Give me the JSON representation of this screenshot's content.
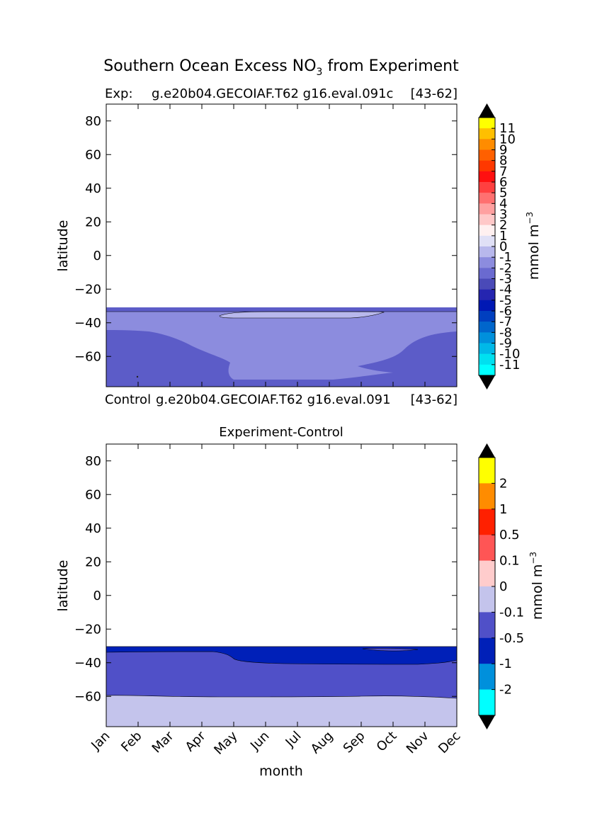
{
  "figure": {
    "title": "Southern Ocean Excess NO",
    "title_subscript": "3",
    "title_suffix": " from Experiment"
  },
  "panel1": {
    "label_left": "Exp:",
    "label_mid": "g.e20b04.GECOIAF.T62 g16.eval.091c",
    "label_right": "[43-62]",
    "bottom_left": "Control",
    "bottom_mid": "g.e20b04.GECOIAF.T62 g16.eval.091",
    "bottom_right": "[43-62]",
    "ylabel": "latitude",
    "yticks": [
      "80",
      "60",
      "40",
      "20",
      "0",
      "−20",
      "−40",
      "−60"
    ],
    "colorbar_label": "mmol m",
    "colorbar_label_sup": "−3",
    "colorbar_ticks": [
      "11",
      "10",
      "9",
      "8",
      "7",
      "6",
      "5",
      "4",
      "3",
      "2",
      "1",
      "0",
      "-1",
      "-2",
      "-3",
      "-4",
      "-5",
      "-6",
      "-7",
      "-8",
      "-9",
      "-10",
      "-11"
    ]
  },
  "panel2": {
    "title": "Experiment-Control",
    "ylabel": "latitude",
    "xlabel": "month",
    "yticks": [
      "80",
      "60",
      "40",
      "20",
      "0",
      "−20",
      "−40",
      "−60"
    ],
    "xticks": [
      "Jan",
      "Feb",
      "Mar",
      "Apr",
      "May",
      "Jun",
      "Jul",
      "Aug",
      "Sep",
      "Oct",
      "Nov",
      "Dec"
    ],
    "colorbar_label": "mmol m",
    "colorbar_label_sup": "−3",
    "colorbar_ticks": [
      "2",
      "1",
      "0.5",
      "0.1",
      "0",
      "-0.1",
      "-0.5",
      "-1",
      "-2"
    ]
  },
  "chart_data": [
    {
      "type": "heatmap",
      "subtype": "filled-contour",
      "x": [
        "Jan",
        "Feb",
        "Mar",
        "Apr",
        "May",
        "Jun",
        "Jul",
        "Aug",
        "Sep",
        "Oct",
        "Nov",
        "Dec"
      ],
      "y_range": [
        -78,
        90
      ],
      "ylabel": "latitude",
      "levels": [
        -11,
        -10,
        -9,
        -8,
        -7,
        -6,
        -5,
        -4,
        -3,
        -2,
        -1,
        0,
        1,
        2,
        3,
        4,
        5,
        6,
        7,
        8,
        9,
        10,
        11
      ],
      "colors": [
        "#00ffff",
        "#00e0f0",
        "#00b8e8",
        "#0090dc",
        "#0066cc",
        "#003fbf",
        "#0018b4",
        "#2525b0",
        "#4a4ab8",
        "#6a6ad0",
        "#8c8cde",
        "#b8b8ec",
        "#e0e0f6",
        "#fff0f0",
        "#ffc8c8",
        "#ffa0a0",
        "#ff7070",
        "#ff4040",
        "#ff1010",
        "#ff3800",
        "#ff6000",
        "#ff8c00",
        "#ffbf00",
        "#ffff00"
      ],
      "extend": "both",
      "regions": [
        {
          "level_range": [
            -4,
            -3
          ],
          "desc": "band near -32 to -35 latitude and poleward margins"
        },
        {
          "level_range": [
            -3,
            -2
          ],
          "desc": "main interior south of -35 latitude"
        },
        {
          "level_range": [
            -2,
            -1
          ],
          "desc": "small patch near -37 latitude, May–Sep"
        }
      ]
    },
    {
      "type": "heatmap",
      "subtype": "filled-contour",
      "x": [
        "Jan",
        "Feb",
        "Mar",
        "Apr",
        "May",
        "Jun",
        "Jul",
        "Aug",
        "Sep",
        "Oct",
        "Nov",
        "Dec"
      ],
      "y_range": [
        -78,
        90
      ],
      "ylabel": "latitude",
      "xlabel": "month",
      "levels": [
        -2,
        -1,
        -0.5,
        -0.1,
        0,
        0.1,
        0.5,
        1,
        2
      ],
      "colors": [
        "#00ffff",
        "#0090dc",
        "#0020b8",
        "#5050c8",
        "#c4c4ec",
        "#ffcccc",
        "#ff5555",
        "#ff2000",
        "#ff8c00",
        "#ffff00"
      ],
      "extend": "both",
      "regions": [
        {
          "level_range": [
            -1,
            -0.5
          ],
          "desc": "band near -32 to -40 latitude, strongest May–Dec"
        },
        {
          "level_range": [
            -0.5,
            -0.1
          ],
          "desc": "from -35 to about -61 latitude"
        },
        {
          "level_range": [
            -0.1,
            0
          ],
          "desc": "south of about -61 latitude"
        }
      ]
    }
  ]
}
